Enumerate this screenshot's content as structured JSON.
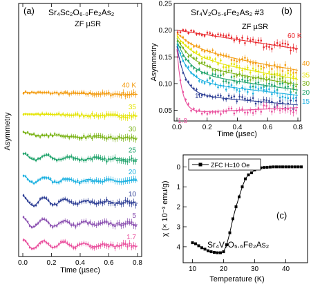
{
  "chart_data": [
    {
      "id": "a",
      "type": "scatter",
      "panel_label": "(a)",
      "title": "Sr₄Sc₂O₆.₀Fe₂As₂",
      "subtitle": "ZF µSR",
      "xlabel": "Time (µsec)",
      "ylabel": "Asymmetry",
      "xlim": [
        0,
        0.8
      ],
      "x_ticks": [
        "0.0",
        "0.2",
        "0.4",
        "0.6",
        "0.8"
      ],
      "x_tick_values": [
        0,
        0.2,
        0.4,
        0.6,
        0.8
      ],
      "series": [
        {
          "name": "40 K",
          "color": "#f39c12",
          "A": 0.1,
          "lam": 0.8,
          "Aosc": 0,
          "f": 0,
          "offset": 3.6
        },
        {
          "name": "35",
          "color": "#e4e400",
          "A": 0.1,
          "lam": 0.9,
          "Aosc": 0,
          "f": 0,
          "offset": 3.1
        },
        {
          "name": "30",
          "color": "#7ab317",
          "A": 0.14,
          "lam": 2.0,
          "Aosc": 0.03,
          "f": 4.0,
          "offset": 2.6
        },
        {
          "name": "25",
          "color": "#1fa36b",
          "A": 0.1,
          "lam": 1.5,
          "Aosc": 0.08,
          "f": 6.0,
          "offset": 2.1
        },
        {
          "name": "20",
          "color": "#1ab0e0",
          "A": 0.07,
          "lam": 1.2,
          "Aosc": 0.1,
          "f": 6.5,
          "offset": 1.6
        },
        {
          "name": "10",
          "color": "#2c3d94",
          "A": 0.06,
          "lam": 1.0,
          "Aosc": 0.12,
          "f": 6.8,
          "offset": 1.1
        },
        {
          "name": "5",
          "color": "#8a4fb0",
          "A": 0.06,
          "lam": 1.0,
          "Aosc": 0.12,
          "f": 6.9,
          "offset": 0.6
        },
        {
          "name": "1.7",
          "color": "#e94d9c",
          "A": 0.06,
          "lam": 1.0,
          "Aosc": 0.12,
          "f": 7.0,
          "offset": 0.1
        }
      ]
    },
    {
      "id": "b",
      "type": "scatter",
      "panel_label": "(b)",
      "title": "Sr₄V₂O₅.₆Fe₂As₂ #3",
      "subtitle": "ZF µSR",
      "xlabel": "Time (µsec)",
      "ylabel": "Asymmetry",
      "xlim": [
        0,
        0.8
      ],
      "ylim": [
        0.03,
        0.25
      ],
      "x_ticks": [
        "0.0",
        "0.2",
        "0.4",
        "0.6",
        "0.8"
      ],
      "x_tick_values": [
        0,
        0.2,
        0.4,
        0.6,
        0.8
      ],
      "y_ticks": [
        "0.05",
        "0.10",
        "0.15",
        "0.20",
        "0.25"
      ],
      "y_tick_values": [
        0.05,
        0.1,
        0.15,
        0.2,
        0.25
      ],
      "series": [
        {
          "name": "60 K",
          "color": "#e8262b",
          "start": 0.2,
          "end": 0.165,
          "fast": 0.0,
          "rate": 0
        },
        {
          "name": "40",
          "color": "#f39c12",
          "start": 0.195,
          "end": 0.125,
          "fast": 0.03,
          "rate": 8
        },
        {
          "name": "35",
          "color": "#e4e400",
          "start": 0.19,
          "end": 0.108,
          "fast": 0.04,
          "rate": 9
        },
        {
          "name": "30",
          "color": "#7ab317",
          "start": 0.185,
          "end": 0.098,
          "fast": 0.05,
          "rate": 10
        },
        {
          "name": "20",
          "color": "#1fa36b",
          "start": 0.18,
          "end": 0.088,
          "fast": 0.06,
          "rate": 12
        },
        {
          "name": "15",
          "color": "#1ab0e0",
          "start": 0.175,
          "end": 0.078,
          "fast": 0.07,
          "rate": 14
        },
        {
          "name": "10",
          "color": "#2c3d94",
          "start": 0.17,
          "end": 0.06,
          "fast": 0.09,
          "rate": 18
        },
        {
          "name": "1.8",
          "color": "#e94d9c",
          "start": 0.165,
          "end": 0.055,
          "fast": 0.12,
          "rate": 30
        }
      ]
    },
    {
      "id": "c",
      "type": "line",
      "panel_label": "(c)",
      "title": "Sr₄V₂O₅.₆Fe₂As₂",
      "legend": "ZFC H=10 Oe",
      "xlabel": "Temperature (K)",
      "ylabel": "χ (× 10⁻³ emu/g)",
      "xlim": [
        7,
        47
      ],
      "ylim": [
        -0.6,
        4.8
      ],
      "y_inverted": true,
      "x_ticks": [
        "10",
        "20",
        "30",
        "40"
      ],
      "x_tick_values": [
        10,
        20,
        30,
        40
      ],
      "y_ticks": [
        "0",
        "1",
        "2",
        "3",
        "4"
      ],
      "y_tick_values": [
        0,
        1,
        2,
        3,
        4
      ],
      "x": [
        10,
        11,
        12,
        13,
        14,
        15,
        16,
        17,
        18,
        19,
        20,
        21,
        22,
        23,
        24,
        25,
        26,
        27,
        28,
        29,
        30,
        31,
        32,
        33,
        34,
        35,
        36,
        37,
        38,
        39,
        40,
        41,
        42,
        43,
        44,
        45
      ],
      "y": [
        3.8,
        3.85,
        3.95,
        4.05,
        4.12,
        4.2,
        4.25,
        4.28,
        4.3,
        4.3,
        4.25,
        3.9,
        3.3,
        2.6,
        2.0,
        1.5,
        1.0,
        0.6,
        0.4,
        0.3,
        0.15,
        0.08,
        0.05,
        0.03,
        0.02,
        0.01,
        0.0,
        0.0,
        0.0,
        0.0,
        0.0,
        0.0,
        0.0,
        0.0,
        0.0,
        0.0
      ]
    }
  ]
}
